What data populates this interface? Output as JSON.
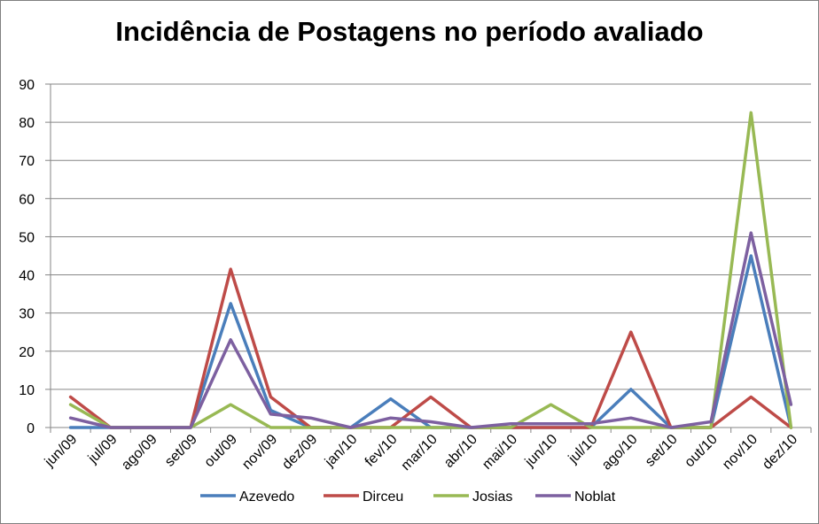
{
  "chart_data": {
    "type": "line",
    "title": "Incidência de Postagens no período avaliado",
    "xlabel": "",
    "ylabel": "",
    "ylim": [
      0,
      90
    ],
    "yticks": [
      0,
      10,
      20,
      30,
      40,
      50,
      60,
      70,
      80,
      90
    ],
    "grid": true,
    "legend_position": "bottom",
    "categories": [
      "jun/09",
      "jul/09",
      "ago/09",
      "set/09",
      "out/09",
      "nov/09",
      "dez/09",
      "jan/10",
      "fev/10",
      "mar/10",
      "abr/10",
      "mai/10",
      "jun/10",
      "jul/10",
      "ago/10",
      "set/10",
      "out/10",
      "nov/10",
      "dez/10"
    ],
    "series": [
      {
        "name": "Azevedo",
        "color": "#4a7ebb",
        "values": [
          0,
          0,
          0,
          0,
          32.5,
          4.5,
          0,
          0,
          7.5,
          0,
          0,
          0,
          0,
          0,
          10,
          0,
          0,
          45,
          0
        ]
      },
      {
        "name": "Dirceu",
        "color": "#be4b48",
        "values": [
          8,
          0,
          0,
          0,
          41.5,
          8,
          0,
          0,
          0,
          8,
          0,
          0,
          0,
          0,
          25,
          0,
          0,
          8,
          0
        ]
      },
      {
        "name": "Josias",
        "color": "#98b954",
        "values": [
          6,
          0,
          0,
          0,
          6,
          0,
          0,
          0,
          0,
          0,
          0,
          0,
          6,
          0,
          0,
          0,
          0,
          82.5,
          0
        ]
      },
      {
        "name": "Noblat",
        "color": "#7d60a0",
        "values": [
          2.5,
          0,
          0,
          0,
          23,
          3.5,
          2.5,
          0,
          2.5,
          1.5,
          0,
          1,
          1,
          1,
          2.5,
          0,
          1.5,
          51,
          6
        ]
      }
    ]
  }
}
